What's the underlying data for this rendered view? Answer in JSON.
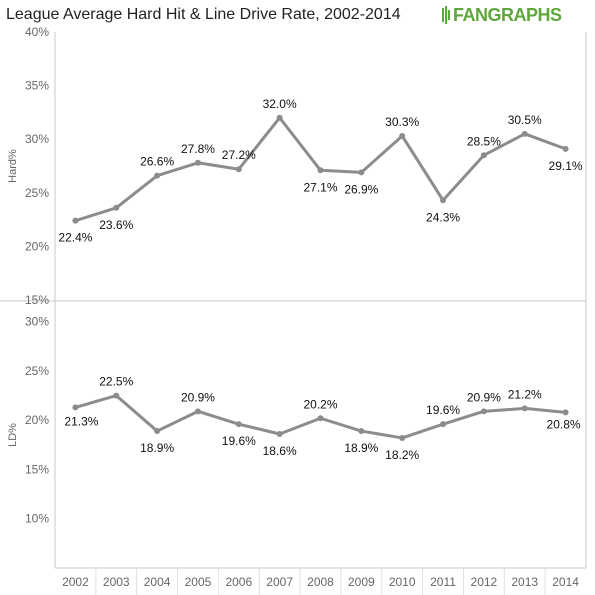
{
  "title": "League Average Hard Hit & Line Drive Rate, 2002-2014",
  "logo": {
    "text_a": "FAN",
    "text_b": "GRAPHS",
    "icon": "fangraphs-batter-icon"
  },
  "colors": {
    "line": "#8c8c8c",
    "grid": "#e0e0e0",
    "axis": "#c8c8c8",
    "logo": "#5fa63c"
  },
  "chart_data": [
    {
      "type": "line",
      "x": [
        "2002",
        "2003",
        "2004",
        "2005",
        "2006",
        "2007",
        "2008",
        "2009",
        "2010",
        "2011",
        "2012",
        "2013",
        "2014"
      ],
      "values": [
        22.4,
        23.6,
        26.6,
        27.8,
        27.2,
        32.0,
        27.1,
        26.9,
        30.3,
        24.3,
        28.5,
        30.5,
        29.1
      ],
      "data_labels": [
        "22.4%",
        "23.6%",
        "26.6%",
        "27.8%",
        "27.2%",
        "32.0%",
        "27.1%",
        "26.9%",
        "30.3%",
        "24.3%",
        "28.5%",
        "30.5%",
        "29.1%"
      ],
      "label_pos": [
        "below",
        "below",
        "above",
        "above",
        "above",
        "above",
        "below",
        "below",
        "above",
        "below",
        "above",
        "above",
        "below"
      ],
      "ylabel": "Hard%",
      "ylim": [
        15,
        40
      ],
      "yticks": [
        15,
        20,
        25,
        30,
        35,
        40
      ],
      "ytick_labels": [
        "15%",
        "20%",
        "25%",
        "30%",
        "35%",
        "40%"
      ],
      "grid": false
    },
    {
      "type": "line",
      "x": [
        "2002",
        "2003",
        "2004",
        "2005",
        "2006",
        "2007",
        "2008",
        "2009",
        "2010",
        "2011",
        "2012",
        "2013",
        "2014"
      ],
      "values": [
        21.3,
        22.5,
        18.9,
        20.9,
        19.6,
        18.6,
        20.2,
        18.9,
        18.2,
        19.6,
        20.9,
        21.2,
        20.8
      ],
      "data_labels": [
        "21.3%",
        "22.5%",
        "18.9%",
        "20.9%",
        "19.6%",
        "18.6%",
        "20.2%",
        "18.9%",
        "18.2%",
        "19.6%",
        "20.9%",
        "21.2%",
        "20.8%"
      ],
      "label_pos": [
        "left",
        "above",
        "below",
        "above",
        "below",
        "below",
        "above",
        "below",
        "below",
        "above",
        "above",
        "above",
        "right"
      ],
      "ylabel": "LD%",
      "ylim": [
        5,
        32
      ],
      "yticks": [
        10,
        15,
        20,
        25,
        30
      ],
      "ytick_labels": [
        "10%",
        "15%",
        "20%",
        "25%",
        "30%"
      ],
      "grid": false
    }
  ],
  "x_tick_labels": [
    "2002",
    "2003",
    "2004",
    "2005",
    "2006",
    "2007",
    "2008",
    "2009",
    "2010",
    "2011",
    "2012",
    "2013",
    "2014"
  ]
}
